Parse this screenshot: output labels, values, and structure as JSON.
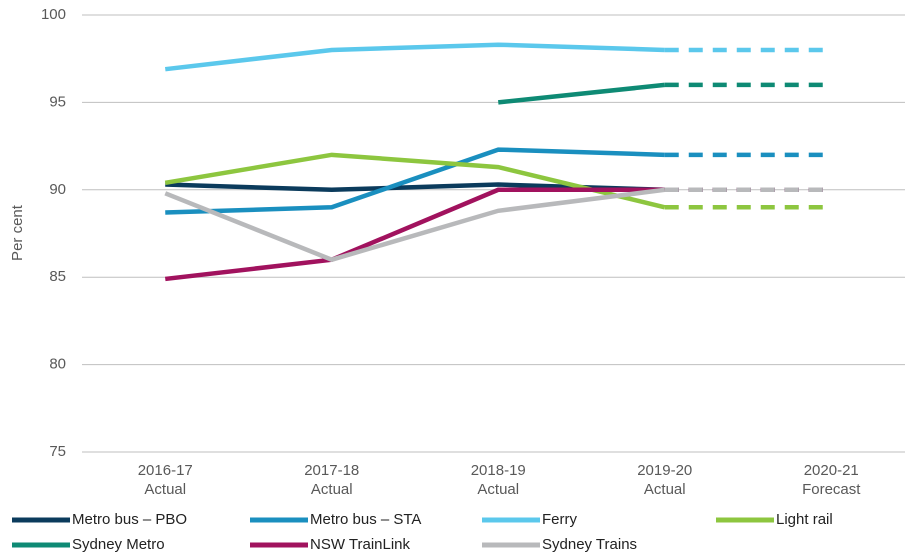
{
  "chart_data": {
    "type": "line",
    "ylabel": "Per cent",
    "categories": [
      [
        "2016-17",
        "Actual"
      ],
      [
        "2017-18",
        "Actual"
      ],
      [
        "2018-19",
        "Actual"
      ],
      [
        "2019-20",
        "Actual"
      ],
      [
        "2020-21",
        "Forecast"
      ]
    ],
    "dash_from": 3,
    "ylim": [
      75,
      100
    ],
    "yticks": [
      75,
      80,
      85,
      90,
      95,
      100
    ],
    "grid": true,
    "legend": "bottom",
    "series": [
      {
        "name": "Metro bus – PBO",
        "color": "#0b3b5c",
        "values": [
          90.3,
          90,
          90.3,
          90,
          90
        ]
      },
      {
        "name": "Metro bus – STA",
        "color": "#1a8fbf",
        "values": [
          88.7,
          89,
          92.3,
          92,
          92
        ]
      },
      {
        "name": "Ferry",
        "color": "#5bc8ec",
        "values": [
          96.9,
          98,
          98.3,
          98,
          98
        ]
      },
      {
        "name": "Light rail",
        "color": "#8dc63f",
        "values": [
          90.4,
          92,
          91.3,
          89,
          89
        ]
      },
      {
        "name": "Sydney Metro",
        "color": "#0e8a74",
        "values": [
          null,
          null,
          95,
          96,
          96
        ]
      },
      {
        "name": "NSW TrainLink",
        "color": "#a1125e",
        "values": [
          84.9,
          86,
          90,
          90,
          90
        ]
      },
      {
        "name": "Sydney Trains",
        "color": "#b8b9bb",
        "values": [
          89.8,
          86,
          88.8,
          90,
          90
        ]
      }
    ]
  }
}
